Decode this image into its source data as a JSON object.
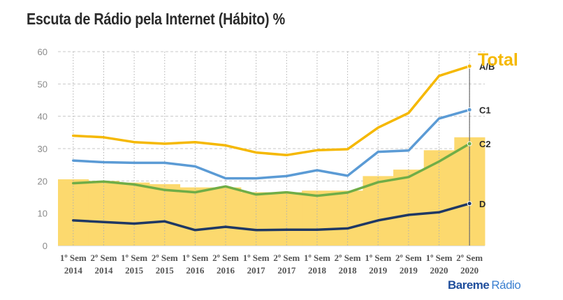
{
  "chart_data": {
    "type": "line",
    "title": "Escuta de Rádio pela Internet (Hábito) %",
    "ylim": [
      0,
      60
    ],
    "yticks": [
      0,
      10,
      20,
      30,
      40,
      50,
      60
    ],
    "grid": "dashed horizontal and vertical",
    "categories": [
      [
        "1º Sem",
        "2014"
      ],
      [
        "2º Sem",
        "2014"
      ],
      [
        "1º Sem",
        "2015"
      ],
      [
        "2º Sem",
        "2015"
      ],
      [
        "1º Sem",
        "2016"
      ],
      [
        "2º Sem",
        "2016"
      ],
      [
        "1º Sem",
        "2017"
      ],
      [
        "2º Sem",
        "2017"
      ],
      [
        "1º Sem",
        "2018"
      ],
      [
        "2º Sem",
        "2018"
      ],
      [
        "1º Sem",
        "2019"
      ],
      [
        "2º Sem",
        "2019"
      ],
      [
        "1º Sem",
        "2020"
      ],
      [
        "2º Sem",
        "2020"
      ]
    ],
    "bar_series": {
      "name": "Total",
      "color": "#fcd96e",
      "values": [
        20.5,
        20.0,
        19.5,
        19.0,
        18.0,
        18.0,
        16.5,
        16.5,
        17.0,
        17.0,
        21.5,
        23.5,
        29.5,
        33.5
      ]
    },
    "series": [
      {
        "name": "A/B",
        "color": "#f5b800",
        "values": [
          34.0,
          33.5,
          32.0,
          31.5,
          32.0,
          31.0,
          28.8,
          28.0,
          29.5,
          29.8,
          36.5,
          41.0,
          52.5,
          55.5
        ]
      },
      {
        "name": "C1",
        "color": "#5b9bd5",
        "values": [
          26.3,
          25.8,
          25.6,
          25.6,
          24.5,
          20.8,
          20.8,
          21.5,
          23.3,
          21.6,
          29.0,
          29.4,
          39.3,
          42.0
        ]
      },
      {
        "name": "C2",
        "color": "#70ad47",
        "values": [
          19.3,
          19.8,
          18.9,
          17.2,
          16.5,
          18.3,
          15.8,
          16.5,
          15.4,
          16.4,
          19.6,
          21.2,
          26.0,
          31.5
        ]
      },
      {
        "name": "D",
        "color": "#1f3864",
        "values": [
          7.8,
          7.3,
          6.8,
          7.5,
          4.8,
          5.8,
          4.8,
          4.9,
          4.9,
          5.3,
          7.8,
          9.5,
          10.3,
          13.0
        ]
      }
    ],
    "annotation": "Total"
  },
  "brand": {
    "part1": "Bareme",
    "part2": "Rádio"
  }
}
